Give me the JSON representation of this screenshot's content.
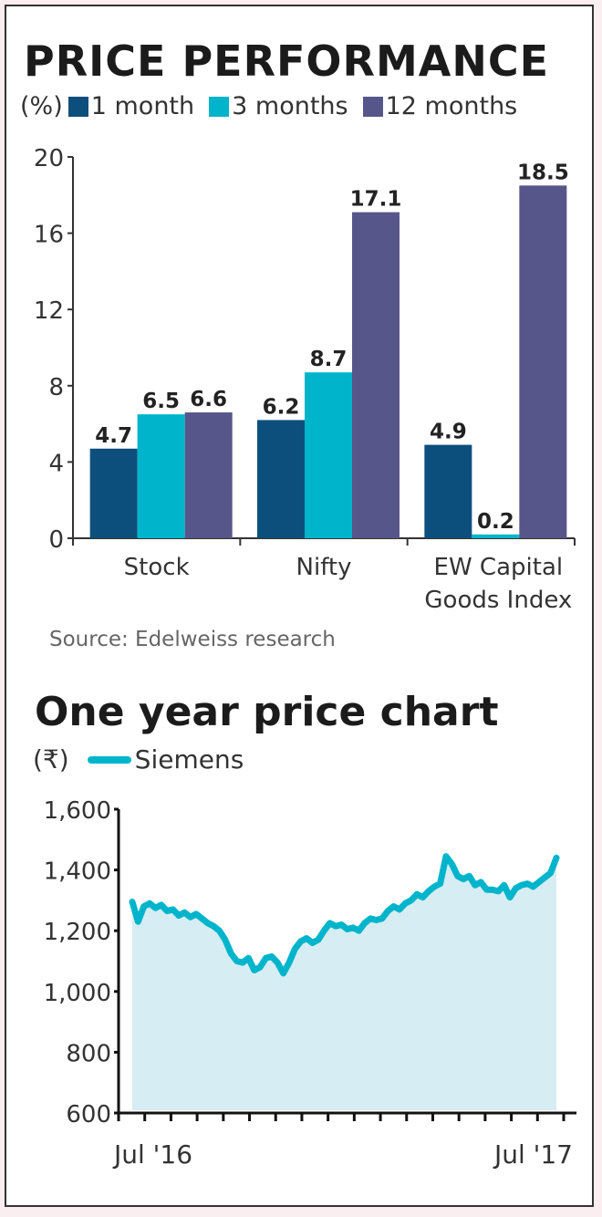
{
  "chart_data": [
    {
      "type": "bar",
      "title": "PRICE PERFORMANCE",
      "unit_label": "(%)",
      "categories": [
        "Stock",
        "Nifty",
        "EW Capital Goods Index"
      ],
      "category_labels": [
        [
          "Stock"
        ],
        [
          "Nifty"
        ],
        [
          "EW Capital",
          "Goods Index"
        ]
      ],
      "series": [
        {
          "name": "1 month",
          "color": "#0d4f7c",
          "values": [
            4.7,
            6.2,
            4.9
          ]
        },
        {
          "name": "3 months",
          "color": "#00b5cb",
          "values": [
            6.5,
            8.7,
            0.2
          ]
        },
        {
          "name": "12 months",
          "color": "#57568a",
          "values": [
            6.6,
            17.1,
            18.5
          ]
        }
      ],
      "ylim": [
        0,
        20
      ],
      "yticks": [
        0,
        4,
        8,
        12,
        16,
        20
      ],
      "xlabel": "",
      "ylabel": "",
      "grid": false,
      "legend": "top",
      "source": "Source: Edelweiss research"
    },
    {
      "type": "area",
      "title": "One year price chart",
      "unit_label": "(₹)",
      "series": [
        {
          "name": "Siemens",
          "color": "#00b5cb",
          "fill": "#d6edf3",
          "values": [
            1295,
            1230,
            1280,
            1290,
            1275,
            1285,
            1265,
            1270,
            1250,
            1260,
            1245,
            1255,
            1240,
            1225,
            1215,
            1200,
            1170,
            1125,
            1100,
            1095,
            1110,
            1070,
            1080,
            1110,
            1115,
            1095,
            1060,
            1095,
            1140,
            1165,
            1175,
            1160,
            1170,
            1200,
            1225,
            1215,
            1220,
            1205,
            1210,
            1200,
            1225,
            1240,
            1235,
            1240,
            1265,
            1280,
            1270,
            1290,
            1300,
            1320,
            1310,
            1330,
            1345,
            1355,
            1445,
            1420,
            1380,
            1370,
            1380,
            1350,
            1360,
            1335,
            1335,
            1330,
            1350,
            1310,
            1340,
            1350,
            1355,
            1345,
            1360,
            1375,
            1390,
            1440
          ]
        }
      ],
      "ylim": [
        600,
        1600
      ],
      "yticks": [
        600,
        800,
        1000,
        1200,
        1400,
        1600
      ],
      "ytick_labels": [
        "600",
        "800",
        "1,000",
        "1,200",
        "1,400",
        "1,600"
      ],
      "xtick_labels": [
        "Jul '16",
        "Jul '17"
      ],
      "xtick_count": 18,
      "xlabel": "",
      "ylabel": "",
      "grid": false,
      "legend": "top-left"
    }
  ]
}
